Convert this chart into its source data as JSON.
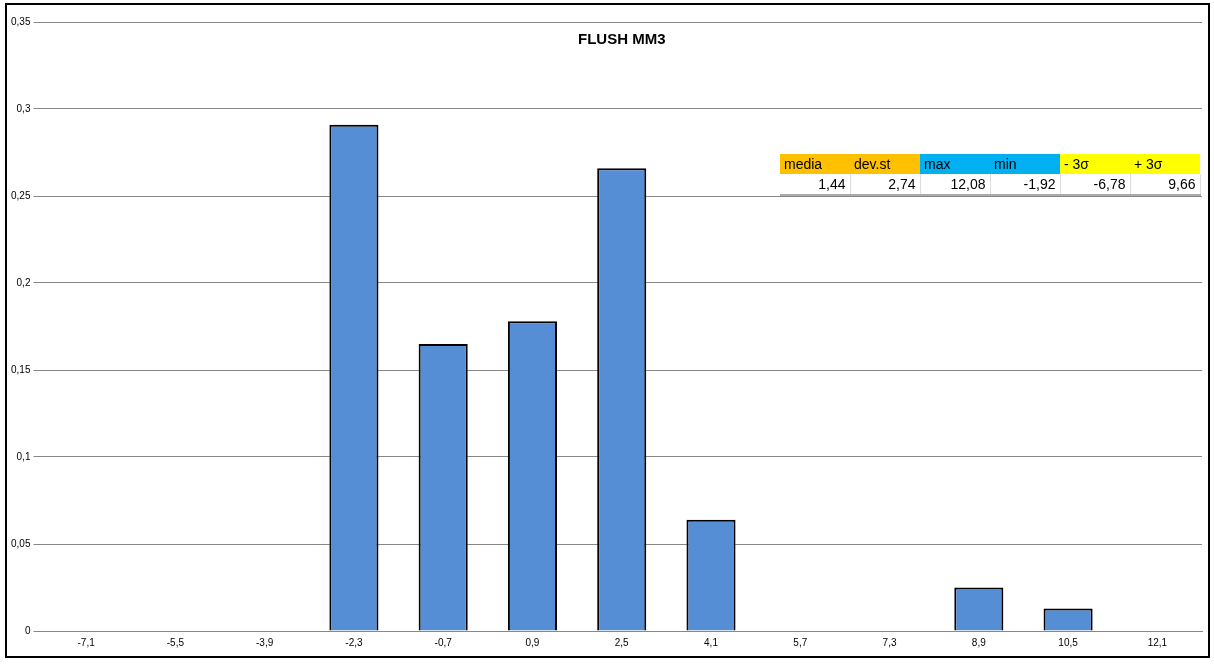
{
  "chart_data": {
    "type": "bar",
    "title": "FLUSH MM3",
    "categories": [
      "-7,1",
      "-5,5",
      "-3,9",
      "-2,3",
      "-0,7",
      "0,9",
      "2,5",
      "4,1",
      "5,7",
      "7,3",
      "8,9",
      "10,5",
      "12,1"
    ],
    "values": [
      0,
      0,
      0,
      0.291,
      0.165,
      0.178,
      0.266,
      0.064,
      0,
      0,
      0.025,
      0.013,
      0
    ],
    "color": "#558ed5",
    "ylim": [
      0,
      0.35
    ],
    "yticks": [
      0,
      {
        "value": 0.05,
        "label": "0,05"
      },
      {
        "value": 0.1,
        "label": "0,1"
      },
      {
        "value": 0.15,
        "label": "0,15"
      },
      {
        "value": 0.2,
        "label": "0,2"
      },
      {
        "value": 0.25,
        "label": "0,25"
      },
      {
        "value": 0.3,
        "label": "0,3"
      },
      {
        "value": 0.35,
        "label": "0,35"
      }
    ],
    "grid": "y",
    "legend": false,
    "annotations": [
      "media",
      "dev.st",
      "max",
      "min",
      "- 3σ",
      "+ 3σ",
      "1,44",
      "2,74",
      "12,08",
      "-1,92",
      "-6,78",
      "9,66"
    ]
  }
}
